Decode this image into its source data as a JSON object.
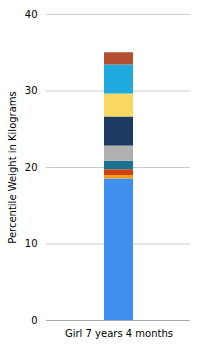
{
  "chart_data": {
    "type": "bar",
    "stacked": true,
    "categories": [
      "Girl 7 years 4 months"
    ],
    "ylabel": "Percentile Weight in Kilograms",
    "series": [
      {
        "color": "#4090EE",
        "values": [
          18.5
        ]
      },
      {
        "color": "#F0A020",
        "values": [
          0.45
        ]
      },
      {
        "color": "#D04010",
        "values": [
          0.75
        ]
      },
      {
        "color": "#1A7090",
        "values": [
          1.1
        ]
      },
      {
        "color": "#B0B0B0",
        "values": [
          2.0
        ]
      },
      {
        "color": "#1E3A60",
        "values": [
          3.8
        ]
      },
      {
        "color": "#F8D860",
        "values": [
          3.0
        ]
      },
      {
        "color": "#20AADD",
        "values": [
          3.8
        ]
      },
      {
        "color": "#B05030",
        "values": [
          1.6
        ]
      }
    ],
    "ylim": [
      0,
      40
    ],
    "yticks": [
      0,
      10,
      20,
      30,
      40
    ],
    "grid": true
  }
}
